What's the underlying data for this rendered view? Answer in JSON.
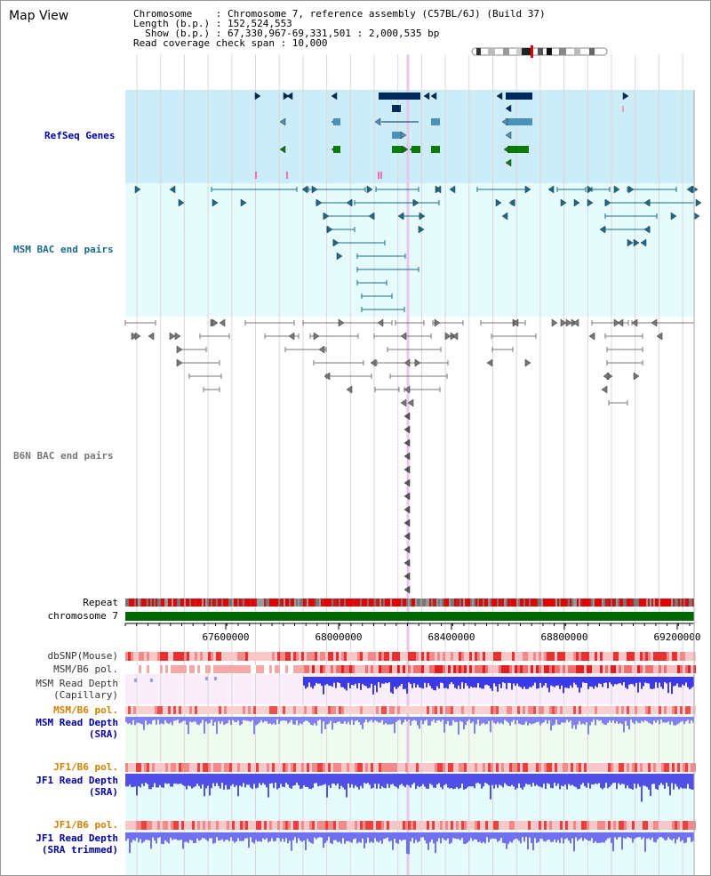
{
  "panel_title": "Map View",
  "header": {
    "line1": "Chromosome    : Chromosome 7, reference assembly (C57BL/6J) (Build 37)",
    "line2": "Length (b.p.) : 152,524,553",
    "line3": "  Show (b.p.) : 67,330,967-69,331,501 : 2,000,535 bp",
    "line4": "Read coverage check span : 10,000"
  },
  "tracks": {
    "refseq": "RefSeq Genes",
    "msm_bac": "MSM BAC end pairs",
    "b6n_bac": "B6N BAC end pairs",
    "repeat": "Repeat",
    "chromosome": "chromosome 7",
    "dbsnp": "dbSNP(Mouse)",
    "msm_pol1": "MSM/B6 pol.",
    "msm_depth_cap_1": "MSM Read Depth",
    "msm_depth_cap_2": "(Capillary)",
    "msm_pol2": "MSM/B6 pol.",
    "msm_depth_sra_1": "MSM Read Depth",
    "msm_depth_sra_2": "(SRA)",
    "jf1_pol1": "JF1/B6 pol.",
    "jf1_depth_sra_1": "JF1 Read Depth",
    "jf1_depth_sra_2": "(SRA)",
    "jf1_pol2": "JF1/B6 pol.",
    "jf1_depth_trim_1": "JF1 Read Depth",
    "jf1_depth_trim_2": "(SRA trimmed)"
  },
  "axis": {
    "ticks": [
      "67600000",
      "68000000",
      "68400000",
      "68800000",
      "69200000"
    ]
  },
  "colors": {
    "refseq_bg": "#ccecf8",
    "bac_bg": "#e6fcfc",
    "dark_navy": "#002a5c",
    "steel": "#4a90b8",
    "green": "#0a7a0a",
    "teal": "#1a6a8a",
    "gray": "#777777",
    "chrom_green": "#006600",
    "depth_blue": "#3333ee",
    "track_label_blue": "#0000a0",
    "track_label_orange": "#d08000"
  }
}
